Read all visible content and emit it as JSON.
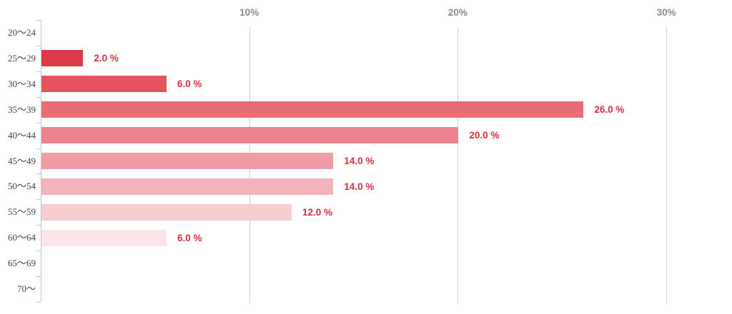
{
  "chart_data": {
    "type": "bar",
    "orientation": "horizontal",
    "title": "",
    "xlabel": "",
    "ylabel": "",
    "categories": [
      "20〜24",
      "25〜29",
      "30〜34",
      "35〜39",
      "40〜44",
      "45〜49",
      "50〜54",
      "55〜59",
      "60〜64",
      "65〜69",
      "70〜"
    ],
    "values": [
      0,
      2.0,
      6.0,
      26.0,
      20.0,
      14.0,
      14.0,
      12.0,
      6.0,
      0,
      0
    ],
    "value_labels": [
      "",
      "2.0 %",
      "6.0 %",
      "26.0 %",
      "20.0 %",
      "14.0 %",
      "14.0 %",
      "12.0 %",
      "6.0 %",
      "",
      ""
    ],
    "bar_colors": [
      null,
      "#dc3a48",
      "#e3545f",
      "#e96c76",
      "#ec828d",
      "#f09ca5",
      "#f3b3ba",
      "#f7cdd2",
      "#fae4e7",
      null,
      null
    ],
    "x_axis": {
      "tick_labels": [
        "10%",
        "20%",
        "30%"
      ],
      "tick_values": [
        10,
        20,
        30
      ],
      "min": 0,
      "max": 30,
      "grid": true,
      "tick_label_position": "top"
    },
    "legend": null,
    "colors": {
      "value_label": "#d92d3c",
      "grid_line": "#cdcdcd",
      "axis_line": "#b9c6dc",
      "axis_tick_label": "#8a8a8a",
      "category_label": "#3f3f3f",
      "background": "#ffffff"
    }
  }
}
